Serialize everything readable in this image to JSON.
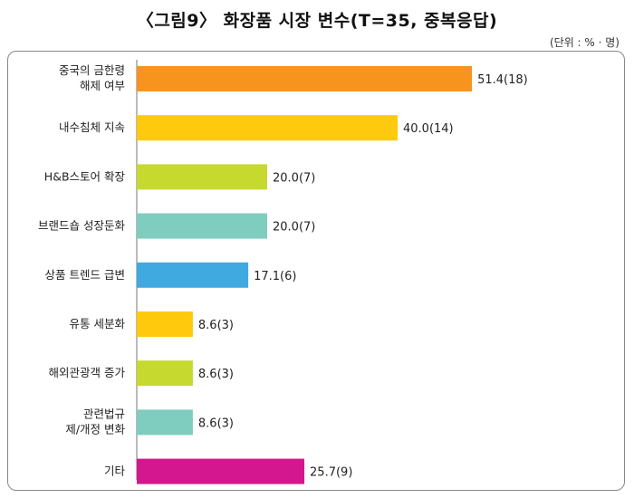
{
  "title": "〈그림9〉 화장품 시장 변수(T=35, 중복응답)",
  "unit_note": "(단위 : % · 명)",
  "chart_data": {
    "type": "bar",
    "orientation": "horizontal",
    "categories": [
      [
        "중국의 금한령",
        "해제 여부"
      ],
      [
        "내수침체 지속"
      ],
      [
        "H&B스토어 확장"
      ],
      [
        "브랜드숍 성장둔화"
      ],
      [
        "상품 트렌드 급변"
      ],
      [
        "유통 세분화"
      ],
      [
        "해외관광객 증가"
      ],
      [
        "관련법규",
        "제/개정 변화"
      ],
      [
        "기타"
      ]
    ],
    "values": [
      51.4,
      40.0,
      20.0,
      20.0,
      17.1,
      8.6,
      8.6,
      8.6,
      25.7
    ],
    "counts": [
      18,
      14,
      7,
      7,
      6,
      3,
      3,
      3,
      9
    ],
    "value_labels": [
      "51.4(18)",
      "40.0(14)",
      "20.0(7)",
      "20.0(7)",
      "17.1(6)",
      "8.6(3)",
      "8.6(3)",
      "8.6(3)",
      "25.7(9)"
    ],
    "colors": [
      "#F7941D",
      "#FFC90E",
      "#C6D92E",
      "#7ECDBE",
      "#3FA9E0",
      "#FFC90E",
      "#C6D92E",
      "#7ECDBE",
      "#D4178E"
    ],
    "xlim": [
      0,
      100
    ],
    "grid": false,
    "legend": "none"
  }
}
